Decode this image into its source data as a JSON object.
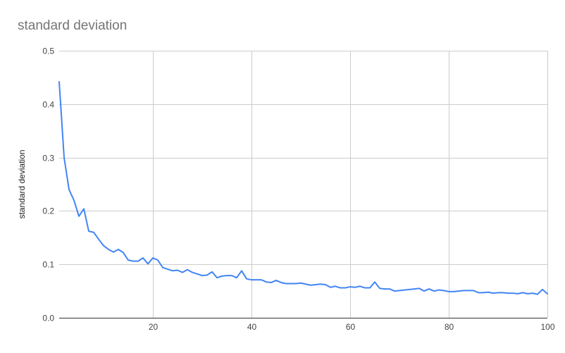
{
  "chart_data": {
    "type": "line",
    "title": "standard deviation",
    "xlabel": "",
    "ylabel": "standard deviation",
    "xlim": [
      1,
      100
    ],
    "ylim": [
      0,
      0.5
    ],
    "x_ticks": [
      20,
      40,
      60,
      80,
      100
    ],
    "y_ticks": [
      0.0,
      0.1,
      0.2,
      0.3,
      0.4,
      0.5
    ],
    "y_tick_labels": [
      "0.0",
      "0.1",
      "0.2",
      "0.3",
      "0.4",
      "0.5"
    ],
    "grid": true,
    "legend": "none",
    "series": [
      {
        "color": "#4285f4",
        "x": [
          1,
          2,
          3,
          4,
          5,
          6,
          7,
          8,
          9,
          10,
          11,
          12,
          13,
          14,
          15,
          16,
          17,
          18,
          19,
          20,
          21,
          22,
          23,
          24,
          25,
          26,
          27,
          28,
          29,
          30,
          31,
          32,
          33,
          34,
          35,
          36,
          37,
          38,
          39,
          40,
          41,
          42,
          43,
          44,
          45,
          46,
          47,
          48,
          49,
          50,
          51,
          52,
          53,
          54,
          55,
          56,
          57,
          58,
          59,
          60,
          61,
          62,
          63,
          64,
          65,
          66,
          67,
          68,
          69,
          70,
          71,
          72,
          73,
          74,
          75,
          76,
          77,
          78,
          79,
          80,
          81,
          82,
          83,
          84,
          85,
          86,
          87,
          88,
          89,
          90,
          91,
          92,
          93,
          94,
          95,
          96,
          97,
          98,
          99,
          100
        ],
        "values": [
          0.442,
          0.3,
          0.24,
          0.22,
          0.19,
          0.204,
          0.162,
          0.16,
          0.147,
          0.135,
          0.128,
          0.123,
          0.128,
          0.122,
          0.108,
          0.106,
          0.106,
          0.112,
          0.101,
          0.112,
          0.108,
          0.094,
          0.091,
          0.088,
          0.089,
          0.085,
          0.09,
          0.085,
          0.082,
          0.079,
          0.08,
          0.086,
          0.075,
          0.078,
          0.079,
          0.079,
          0.075,
          0.088,
          0.073,
          0.071,
          0.071,
          0.071,
          0.067,
          0.066,
          0.07,
          0.066,
          0.064,
          0.064,
          0.064,
          0.065,
          0.063,
          0.061,
          0.062,
          0.063,
          0.062,
          0.057,
          0.059,
          0.056,
          0.056,
          0.058,
          0.057,
          0.059,
          0.056,
          0.056,
          0.067,
          0.055,
          0.054,
          0.054,
          0.05,
          0.051,
          0.052,
          0.053,
          0.054,
          0.055,
          0.05,
          0.054,
          0.05,
          0.052,
          0.051,
          0.049,
          0.049,
          0.05,
          0.051,
          0.051,
          0.051,
          0.047,
          0.047,
          0.048,
          0.046,
          0.047,
          0.047,
          0.046,
          0.046,
          0.045,
          0.047,
          0.045,
          0.046,
          0.044,
          0.053,
          0.045
        ]
      }
    ]
  }
}
